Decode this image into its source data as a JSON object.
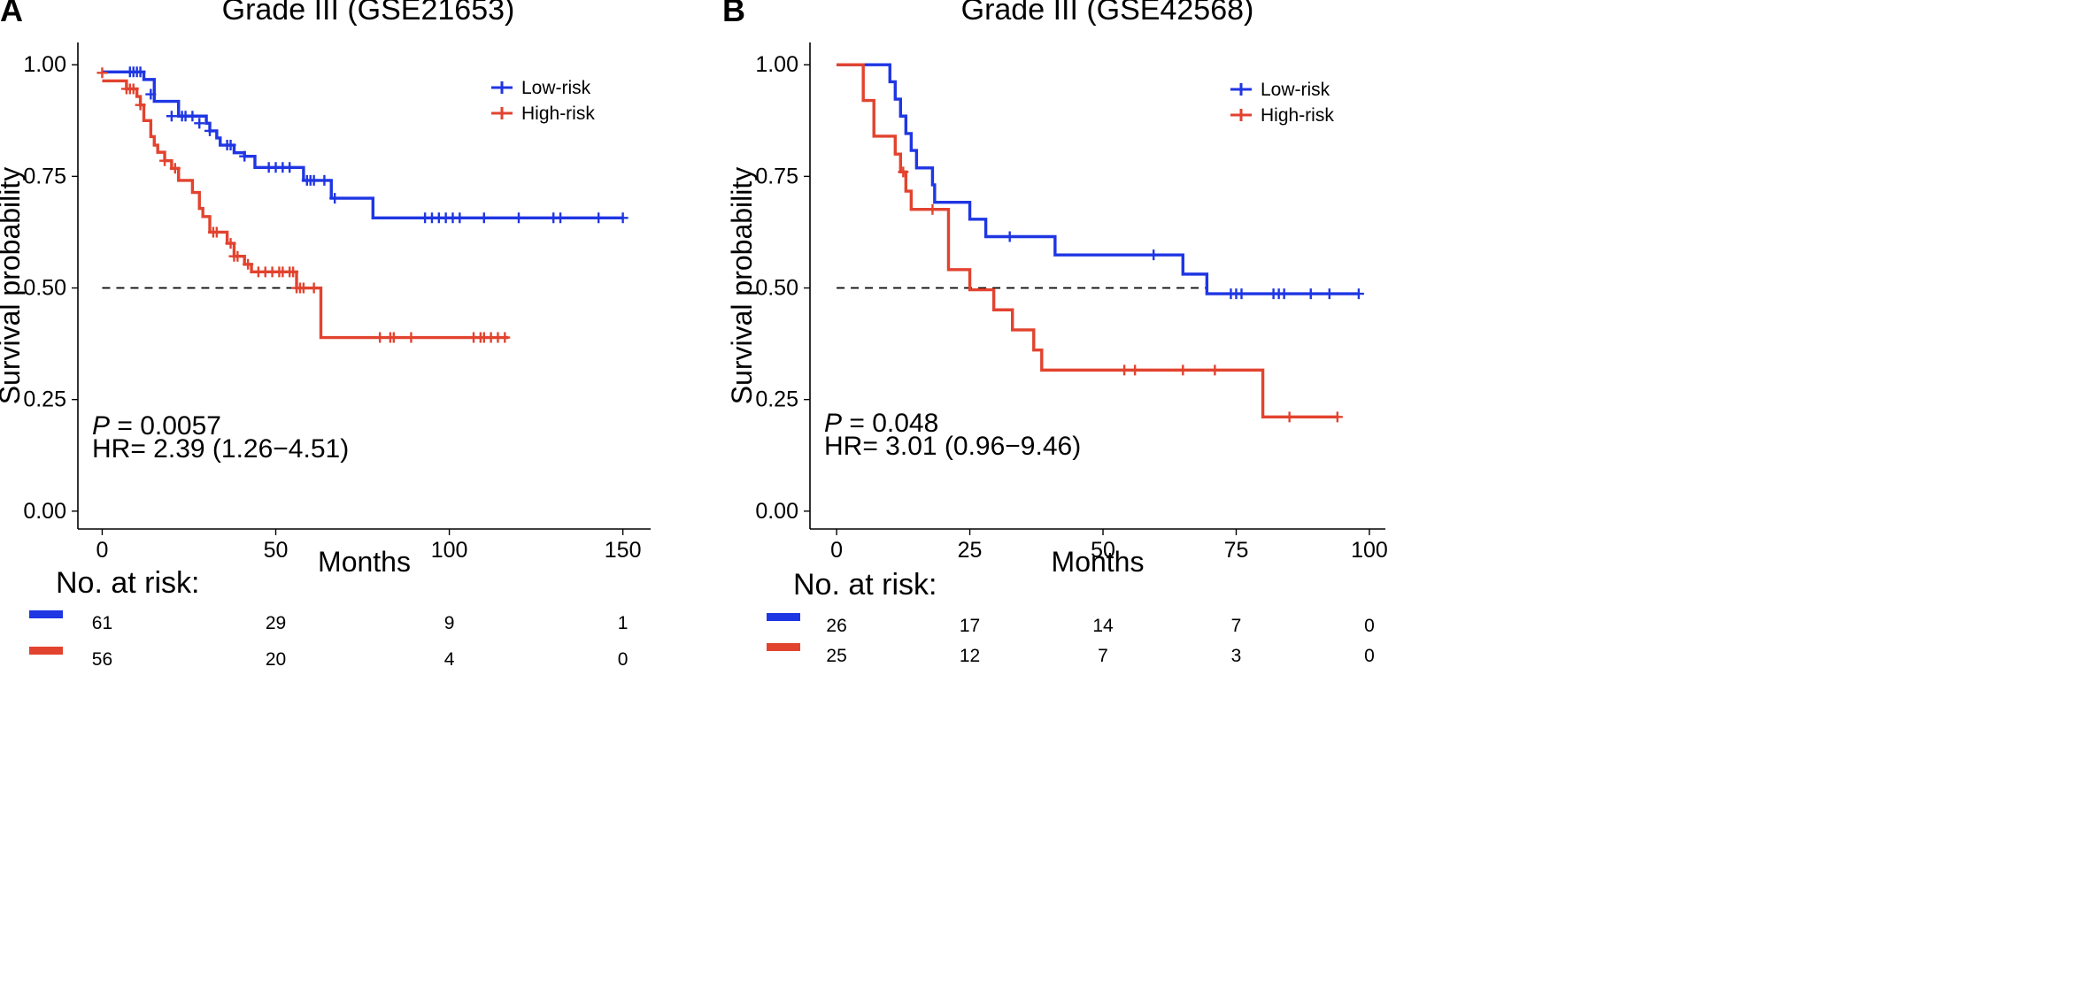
{
  "colors": {
    "low": "#1f36e3",
    "high": "#e2432f",
    "axis": "#000000",
    "ref": "#000000"
  },
  "risk_table": {
    "title": "No. at risk:"
  },
  "chart_data": [
    {
      "id": "A",
      "type": "line",
      "panel_label": "A",
      "title": "Grade III (GSE21653)",
      "xlabel": "Months",
      "ylabel": "Survival probability",
      "xlim": [
        -7,
        158
      ],
      "ylim": [
        -0.04,
        1.05
      ],
      "xticks": [
        0,
        50,
        100,
        150
      ],
      "yticks": [
        0.0,
        0.25,
        0.5,
        0.75,
        1.0
      ],
      "ytick_labels": [
        "0.00",
        "0.25",
        "0.50",
        "0.75",
        "1.00"
      ],
      "median_line": {
        "y": 0.5,
        "x_end": 62
      },
      "legend": [
        {
          "name": "Low-risk",
          "color": "#1f36e3"
        },
        {
          "name": "High-risk",
          "color": "#e2432f"
        }
      ],
      "stats": {
        "p_label": "P",
        "p_value": " = 0.0057",
        "hr": "HR= 2.39 (1.26−4.51)"
      },
      "series": [
        {
          "name": "Low-risk",
          "color": "#1f36e3",
          "steps": [
            [
              0,
              0.984
            ],
            [
              12,
              0.967
            ],
            [
              15,
              0.918
            ],
            [
              22,
              0.885
            ],
            [
              30,
              0.869
            ],
            [
              31,
              0.852
            ],
            [
              33,
              0.836
            ],
            [
              34,
              0.82
            ],
            [
              38,
              0.803
            ],
            [
              41,
              0.795
            ],
            [
              44,
              0.77
            ],
            [
              58,
              0.741
            ],
            [
              66,
              0.701
            ],
            [
              78,
              0.657
            ],
            [
              150,
              0.657
            ]
          ],
          "censors": [
            [
              8,
              0.984
            ],
            [
              9,
              0.984
            ],
            [
              10,
              0.984
            ],
            [
              11,
              0.984
            ],
            [
              14,
              0.934
            ],
            [
              20,
              0.885
            ],
            [
              23,
              0.885
            ],
            [
              24,
              0.885
            ],
            [
              26,
              0.885
            ],
            [
              28,
              0.869
            ],
            [
              31,
              0.852
            ],
            [
              36,
              0.82
            ],
            [
              37,
              0.82
            ],
            [
              41,
              0.795
            ],
            [
              48,
              0.77
            ],
            [
              50,
              0.77
            ],
            [
              52,
              0.77
            ],
            [
              54,
              0.77
            ],
            [
              59,
              0.741
            ],
            [
              60,
              0.741
            ],
            [
              61,
              0.741
            ],
            [
              64,
              0.741
            ],
            [
              67,
              0.701
            ],
            [
              93,
              0.657
            ],
            [
              95,
              0.657
            ],
            [
              97,
              0.657
            ],
            [
              99,
              0.657
            ],
            [
              101,
              0.657
            ],
            [
              103,
              0.657
            ],
            [
              110,
              0.657
            ],
            [
              120,
              0.657
            ],
            [
              130,
              0.657
            ],
            [
              132,
              0.657
            ],
            [
              143,
              0.657
            ],
            [
              150,
              0.657
            ]
          ]
        },
        {
          "name": "High-risk",
          "color": "#e2432f",
          "steps": [
            [
              0,
              0.964
            ],
            [
              7,
              0.946
            ],
            [
              10,
              0.929
            ],
            [
              11,
              0.91
            ],
            [
              12,
              0.875
            ],
            [
              14,
              0.839
            ],
            [
              15,
              0.82
            ],
            [
              16,
              0.804
            ],
            [
              18,
              0.785
            ],
            [
              20,
              0.768
            ],
            [
              22,
              0.741
            ],
            [
              26,
              0.714
            ],
            [
              28,
              0.678
            ],
            [
              29,
              0.66
            ],
            [
              31,
              0.625
            ],
            [
              36,
              0.6
            ],
            [
              38,
              0.571
            ],
            [
              41,
              0.553
            ],
            [
              43,
              0.536
            ],
            [
              56,
              0.5
            ],
            [
              63,
              0.389
            ],
            [
              117,
              0.389
            ]
          ],
          "censors": [
            [
              0,
              0.982
            ],
            [
              7,
              0.946
            ],
            [
              8,
              0.946
            ],
            [
              9,
              0.946
            ],
            [
              11,
              0.91
            ],
            [
              18,
              0.785
            ],
            [
              21,
              0.768
            ],
            [
              32,
              0.625
            ],
            [
              33,
              0.625
            ],
            [
              37,
              0.6
            ],
            [
              38,
              0.571
            ],
            [
              39,
              0.571
            ],
            [
              42,
              0.553
            ],
            [
              45,
              0.536
            ],
            [
              47,
              0.536
            ],
            [
              49,
              0.536
            ],
            [
              51,
              0.536
            ],
            [
              52,
              0.536
            ],
            [
              54,
              0.536
            ],
            [
              55,
              0.536
            ],
            [
              56,
              0.5
            ],
            [
              57,
              0.5
            ],
            [
              58,
              0.5
            ],
            [
              61,
              0.5
            ],
            [
              80,
              0.389
            ],
            [
              83,
              0.389
            ],
            [
              84,
              0.389
            ],
            [
              89,
              0.389
            ],
            [
              107,
              0.389
            ],
            [
              109,
              0.389
            ],
            [
              110,
              0.389
            ],
            [
              112,
              0.389
            ],
            [
              114,
              0.389
            ],
            [
              116,
              0.389
            ]
          ]
        }
      ],
      "risk_rows": [
        {
          "name": "Low-risk",
          "color": "#1f36e3",
          "counts": [
            "61",
            "29",
            "9",
            "1"
          ]
        },
        {
          "name": "High-risk",
          "color": "#e2432f",
          "counts": [
            "56",
            "20",
            "4",
            "0"
          ]
        }
      ]
    },
    {
      "id": "B",
      "type": "line",
      "panel_label": "B",
      "title": "Grade III (GSE42568)",
      "xlabel": "Months",
      "ylabel": "Survival probability",
      "xlim": [
        -5,
        103
      ],
      "ylim": [
        -0.04,
        1.05
      ],
      "xticks": [
        0,
        25,
        50,
        75,
        100
      ],
      "yticks": [
        0.0,
        0.25,
        0.5,
        0.75,
        1.0
      ],
      "ytick_labels": [
        "0.00",
        "0.25",
        "0.50",
        "0.75",
        "1.00"
      ],
      "median_line": {
        "y": 0.5,
        "x_end": 69.5
      },
      "legend": [
        {
          "name": "Low-risk",
          "color": "#1f36e3"
        },
        {
          "name": "High-risk",
          "color": "#e2432f"
        }
      ],
      "stats": {
        "p_label": "P",
        "p_value": " = 0.048",
        "hr": "HR= 3.01 (0.96−9.46)"
      },
      "series": [
        {
          "name": "Low-risk",
          "color": "#1f36e3",
          "steps": [
            [
              0,
              1.0
            ],
            [
              10,
              0.962
            ],
            [
              11,
              0.923
            ],
            [
              12,
              0.885
            ],
            [
              13,
              0.846
            ],
            [
              14,
              0.808
            ],
            [
              15,
              0.769
            ],
            [
              18,
              0.731
            ],
            [
              18.4,
              0.692
            ],
            [
              25,
              0.654
            ],
            [
              28,
              0.615
            ],
            [
              41,
              0.574
            ],
            [
              65,
              0.531
            ],
            [
              69.5,
              0.487
            ],
            [
              98,
              0.487
            ]
          ],
          "censors": [
            [
              32.5,
              0.615
            ],
            [
              59.5,
              0.574
            ],
            [
              74,
              0.487
            ],
            [
              75,
              0.487
            ],
            [
              76,
              0.487
            ],
            [
              82,
              0.487
            ],
            [
              83,
              0.487
            ],
            [
              84,
              0.487
            ],
            [
              89,
              0.487
            ],
            [
              92.5,
              0.487
            ],
            [
              98,
              0.487
            ]
          ]
        },
        {
          "name": "High-risk",
          "color": "#e2432f",
          "steps": [
            [
              0,
              1.0
            ],
            [
              5,
              0.92
            ],
            [
              7,
              0.84
            ],
            [
              11,
              0.8
            ],
            [
              12,
              0.76
            ],
            [
              13,
              0.717
            ],
            [
              14,
              0.676
            ],
            [
              21,
              0.541
            ],
            [
              25,
              0.496
            ],
            [
              29.5,
              0.451
            ],
            [
              33,
              0.406
            ],
            [
              37,
              0.361
            ],
            [
              38.5,
              0.316
            ],
            [
              80,
              0.211
            ],
            [
              94,
              0.211
            ]
          ],
          "censors": [
            [
              12.5,
              0.76
            ],
            [
              18,
              0.676
            ],
            [
              54,
              0.316
            ],
            [
              56,
              0.316
            ],
            [
              65,
              0.316
            ],
            [
              71,
              0.316
            ],
            [
              85,
              0.211
            ],
            [
              94,
              0.211
            ]
          ]
        }
      ],
      "risk_rows": [
        {
          "name": "Low-risk",
          "color": "#1f36e3",
          "counts": [
            "26",
            "17",
            "14",
            "7",
            "0"
          ]
        },
        {
          "name": "High-risk",
          "color": "#e2432f",
          "counts": [
            "25",
            "12",
            "7",
            "3",
            "0"
          ]
        }
      ]
    }
  ]
}
